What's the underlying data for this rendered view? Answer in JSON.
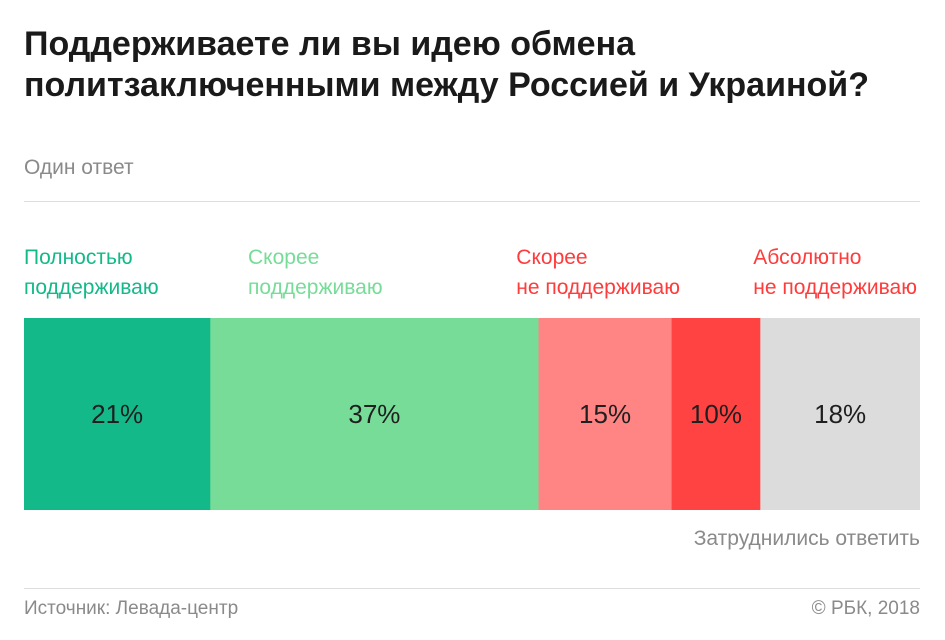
{
  "title": "Поддерживаете ли вы идею обмена политзаключенными между Россией и Украиной?",
  "subtitle": "Один ответ",
  "legend": [
    {
      "line1": "Полностью",
      "line2": "поддерживаю",
      "color": "#14b98a"
    },
    {
      "line1": "Скорее",
      "line2": "поддерживаю",
      "color": "#77dc98"
    },
    {
      "line1": "Скорее",
      "line2": "не поддерживаю",
      "color": "#ff3b3b"
    },
    {
      "line1": "Абсолютно",
      "line2": "не поддерживаю",
      "color": "#ff3b3b"
    }
  ],
  "note": "Затруднились ответить",
  "source": "Источник: Левада-центр",
  "copyright": "© РБК, 2018",
  "chart_data": {
    "type": "bar",
    "orientation": "horizontal-stacked",
    "categories": [
      "Полностью поддерживаю",
      "Скорее поддерживаю",
      "Скорее не поддерживаю",
      "Абсолютно не поддерживаю",
      "Затруднились ответить"
    ],
    "values": [
      21,
      37,
      15,
      10,
      18
    ],
    "labels": [
      "21%",
      "37%",
      "15%",
      "10%",
      "18%"
    ],
    "colors": [
      "#14b98a",
      "#77dc98",
      "#ff8585",
      "#ff4343",
      "#dcdcdc"
    ],
    "unit": "%"
  }
}
